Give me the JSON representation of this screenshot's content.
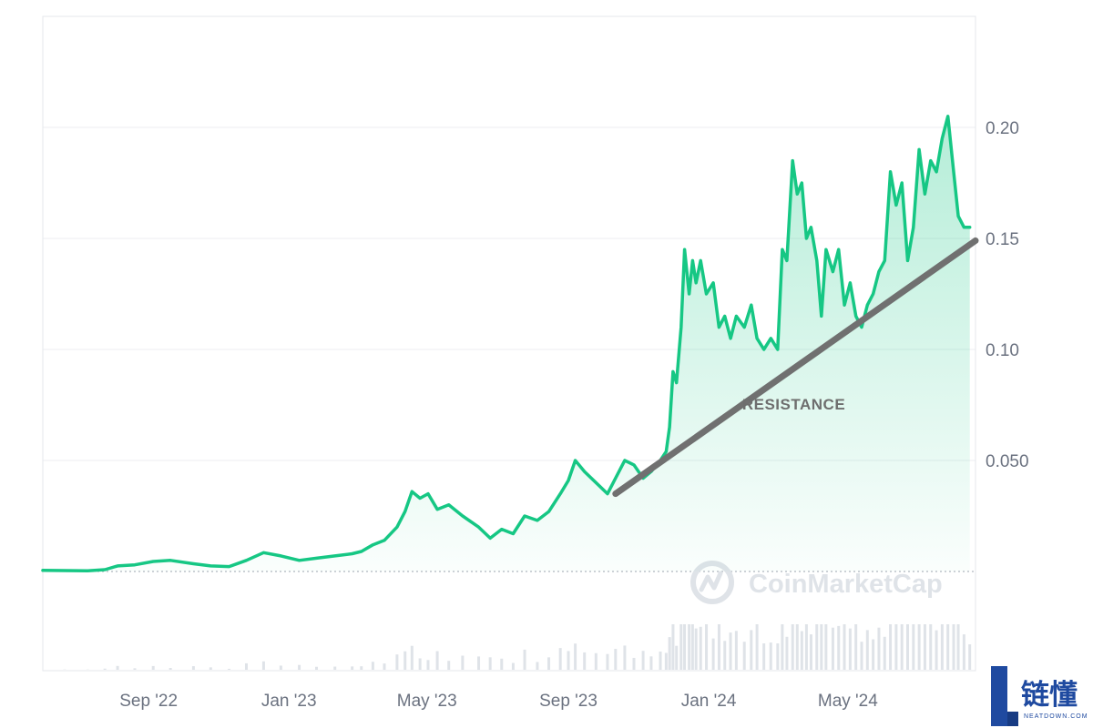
{
  "chart_data": {
    "type": "line",
    "title": "",
    "xlabel": "",
    "ylabel": "",
    "x_ticks": [
      "Sep '22",
      "Jan '23",
      "May '23",
      "Sep '23",
      "Jan '24",
      "May '24"
    ],
    "y_ticks": [
      "0.050",
      "0.10",
      "0.15",
      "0.20"
    ],
    "ylim": [
      0,
      0.25
    ],
    "xlim": [
      "2022-06-01",
      "2024-08-20"
    ],
    "grid": true,
    "legend": "none",
    "series": [
      {
        "color": "#16c784",
        "points": [
          [
            "2022-06-01",
            0.0005
          ],
          [
            "2022-06-20",
            0.0004
          ],
          [
            "2022-07-10",
            0.0003
          ],
          [
            "2022-07-25",
            0.0008
          ],
          [
            "2022-08-05",
            0.0025
          ],
          [
            "2022-08-20",
            0.003
          ],
          [
            "2022-09-05",
            0.0045
          ],
          [
            "2022-09-20",
            0.005
          ],
          [
            "2022-10-10",
            0.0035
          ],
          [
            "2022-10-25",
            0.0025
          ],
          [
            "2022-11-10",
            0.0022
          ],
          [
            "2022-11-25",
            0.005
          ],
          [
            "2022-12-10",
            0.0085
          ],
          [
            "2022-12-25",
            0.007
          ],
          [
            "2023-01-10",
            0.005
          ],
          [
            "2023-01-25",
            0.006
          ],
          [
            "2023-02-10",
            0.007
          ],
          [
            "2023-02-25",
            0.008
          ],
          [
            "2023-03-05",
            0.009
          ],
          [
            "2023-03-15",
            0.012
          ],
          [
            "2023-03-25",
            0.014
          ],
          [
            "2023-04-05",
            0.02
          ],
          [
            "2023-04-12",
            0.027
          ],
          [
            "2023-04-18",
            0.036
          ],
          [
            "2023-04-25",
            0.033
          ],
          [
            "2023-05-02",
            0.035
          ],
          [
            "2023-05-10",
            0.028
          ],
          [
            "2023-05-20",
            0.03
          ],
          [
            "2023-06-01",
            0.025
          ],
          [
            "2023-06-15",
            0.02
          ],
          [
            "2023-06-25",
            0.015
          ],
          [
            "2023-07-05",
            0.019
          ],
          [
            "2023-07-15",
            0.017
          ],
          [
            "2023-07-25",
            0.025
          ],
          [
            "2023-08-05",
            0.023
          ],
          [
            "2023-08-15",
            0.027
          ],
          [
            "2023-08-25",
            0.035
          ],
          [
            "2023-09-01",
            0.041
          ],
          [
            "2023-09-07",
            0.05
          ],
          [
            "2023-09-15",
            0.045
          ],
          [
            "2023-09-25",
            0.04
          ],
          [
            "2023-10-05",
            0.035
          ],
          [
            "2023-10-12",
            0.042
          ],
          [
            "2023-10-20",
            0.05
          ],
          [
            "2023-10-28",
            0.048
          ],
          [
            "2023-11-05",
            0.042
          ],
          [
            "2023-11-12",
            0.045
          ],
          [
            "2023-11-20",
            0.05
          ],
          [
            "2023-11-25",
            0.054
          ],
          [
            "2023-11-28",
            0.065
          ],
          [
            "2023-12-01",
            0.09
          ],
          [
            "2023-12-04",
            0.085
          ],
          [
            "2023-12-08",
            0.11
          ],
          [
            "2023-12-11",
            0.145
          ],
          [
            "2023-12-15",
            0.125
          ],
          [
            "2023-12-18",
            0.14
          ],
          [
            "2023-12-21",
            0.13
          ],
          [
            "2023-12-25",
            0.14
          ],
          [
            "2023-12-30",
            0.125
          ],
          [
            "2024-01-05",
            0.13
          ],
          [
            "2024-01-10",
            0.11
          ],
          [
            "2024-01-15",
            0.115
          ],
          [
            "2024-01-20",
            0.105
          ],
          [
            "2024-01-25",
            0.115
          ],
          [
            "2024-02-01",
            0.11
          ],
          [
            "2024-02-07",
            0.12
          ],
          [
            "2024-02-12",
            0.105
          ],
          [
            "2024-02-18",
            0.1
          ],
          [
            "2024-02-24",
            0.105
          ],
          [
            "2024-03-01",
            0.1
          ],
          [
            "2024-03-05",
            0.145
          ],
          [
            "2024-03-09",
            0.14
          ],
          [
            "2024-03-14",
            0.185
          ],
          [
            "2024-03-18",
            0.17
          ],
          [
            "2024-03-22",
            0.175
          ],
          [
            "2024-03-26",
            0.15
          ],
          [
            "2024-03-30",
            0.155
          ],
          [
            "2024-04-04",
            0.14
          ],
          [
            "2024-04-08",
            0.115
          ],
          [
            "2024-04-12",
            0.145
          ],
          [
            "2024-04-18",
            0.135
          ],
          [
            "2024-04-23",
            0.145
          ],
          [
            "2024-04-28",
            0.12
          ],
          [
            "2024-05-03",
            0.13
          ],
          [
            "2024-05-08",
            0.115
          ],
          [
            "2024-05-13",
            0.11
          ],
          [
            "2024-05-18",
            0.12
          ],
          [
            "2024-05-23",
            0.125
          ],
          [
            "2024-05-28",
            0.135
          ],
          [
            "2024-06-02",
            0.14
          ],
          [
            "2024-06-07",
            0.18
          ],
          [
            "2024-06-12",
            0.165
          ],
          [
            "2024-06-17",
            0.175
          ],
          [
            "2024-06-22",
            0.14
          ],
          [
            "2024-06-27",
            0.155
          ],
          [
            "2024-07-02",
            0.19
          ],
          [
            "2024-07-07",
            0.17
          ],
          [
            "2024-07-12",
            0.185
          ],
          [
            "2024-07-17",
            0.18
          ],
          [
            "2024-07-22",
            0.195
          ],
          [
            "2024-07-27",
            0.205
          ],
          [
            "2024-08-01",
            0.18
          ],
          [
            "2024-08-05",
            0.16
          ],
          [
            "2024-08-10",
            0.155
          ],
          [
            "2024-08-15",
            0.155
          ]
        ]
      }
    ],
    "trendline": {
      "color": "#707070",
      "from": [
        "2023-10-12",
        0.035
      ],
      "to": [
        "2024-08-20",
        0.149
      ]
    },
    "annotations": [
      {
        "text": "RESISTANCE",
        "x": "2024-03-15",
        "y": 0.073
      }
    ],
    "volume_color": "#dfe3e8"
  },
  "watermark": {
    "text": "CoinMarketCap"
  },
  "logo": {
    "text_cn": "链懂",
    "text_en": "NEATDOWN.COM"
  }
}
